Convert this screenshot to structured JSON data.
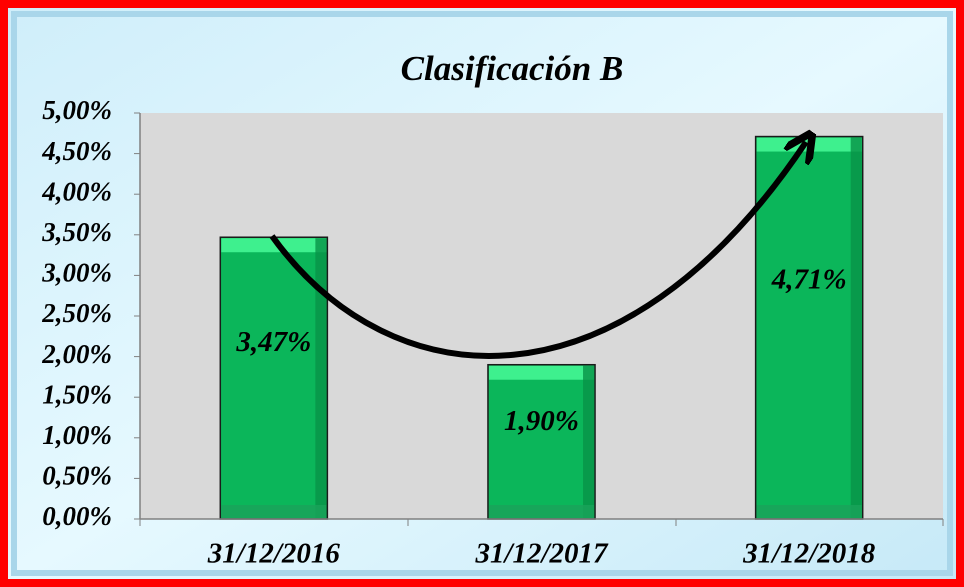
{
  "chart_data": {
    "type": "bar",
    "title": "Clasificación B",
    "categories": [
      "31/12/2016",
      "31/12/2017",
      "31/12/2018"
    ],
    "values": [
      3.47,
      1.9,
      4.71
    ],
    "value_labels": [
      "3,47%",
      "1,90%",
      "4,71%"
    ],
    "color": "#0bb65a",
    "ylim": [
      0,
      5
    ],
    "yticks": [
      {
        "value": 0,
        "label": "0,00%"
      },
      {
        "value": 0.5,
        "label": "0,50%"
      },
      {
        "value": 1,
        "label": "1,00%"
      },
      {
        "value": 1.5,
        "label": "1,50%"
      },
      {
        "value": 2,
        "label": "2,00%"
      },
      {
        "value": 2.5,
        "label": "2,50%"
      },
      {
        "value": 3,
        "label": "3,00%"
      },
      {
        "value": 3.5,
        "label": "3,50%"
      },
      {
        "value": 4,
        "label": "4,00%"
      },
      {
        "value": 4.5,
        "label": "4,50%"
      },
      {
        "value": 5,
        "label": "5,00%"
      }
    ]
  }
}
